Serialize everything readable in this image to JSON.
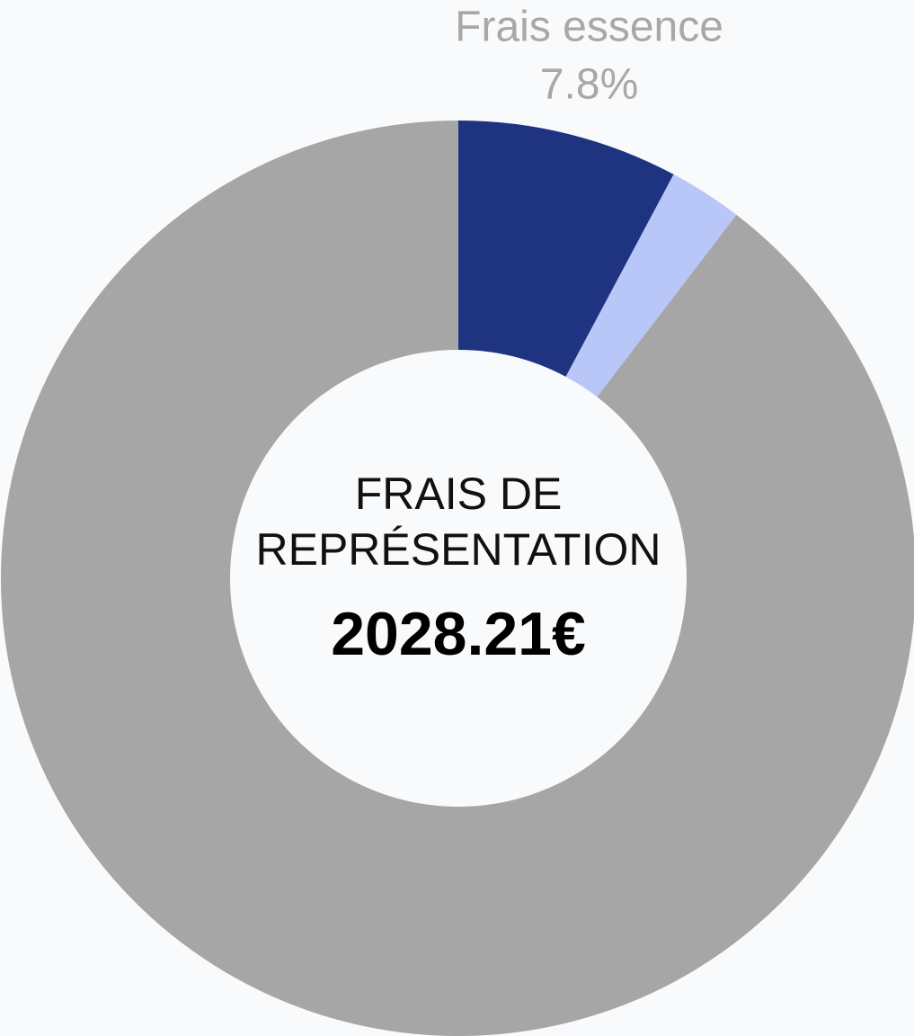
{
  "chart_data": {
    "type": "donut",
    "categories": [
      "Frais essence",
      null,
      null
    ],
    "values": [
      7.8,
      2.6,
      89.6
    ],
    "value_labels": [
      "7.8%",
      null,
      null
    ],
    "colors": [
      "#1e3480",
      "#b8c6f8",
      "#a6a6a6"
    ],
    "center_label": [
      "FRAIS DE",
      "REPRÉSENTATION"
    ],
    "center_value": "2028.21€"
  }
}
